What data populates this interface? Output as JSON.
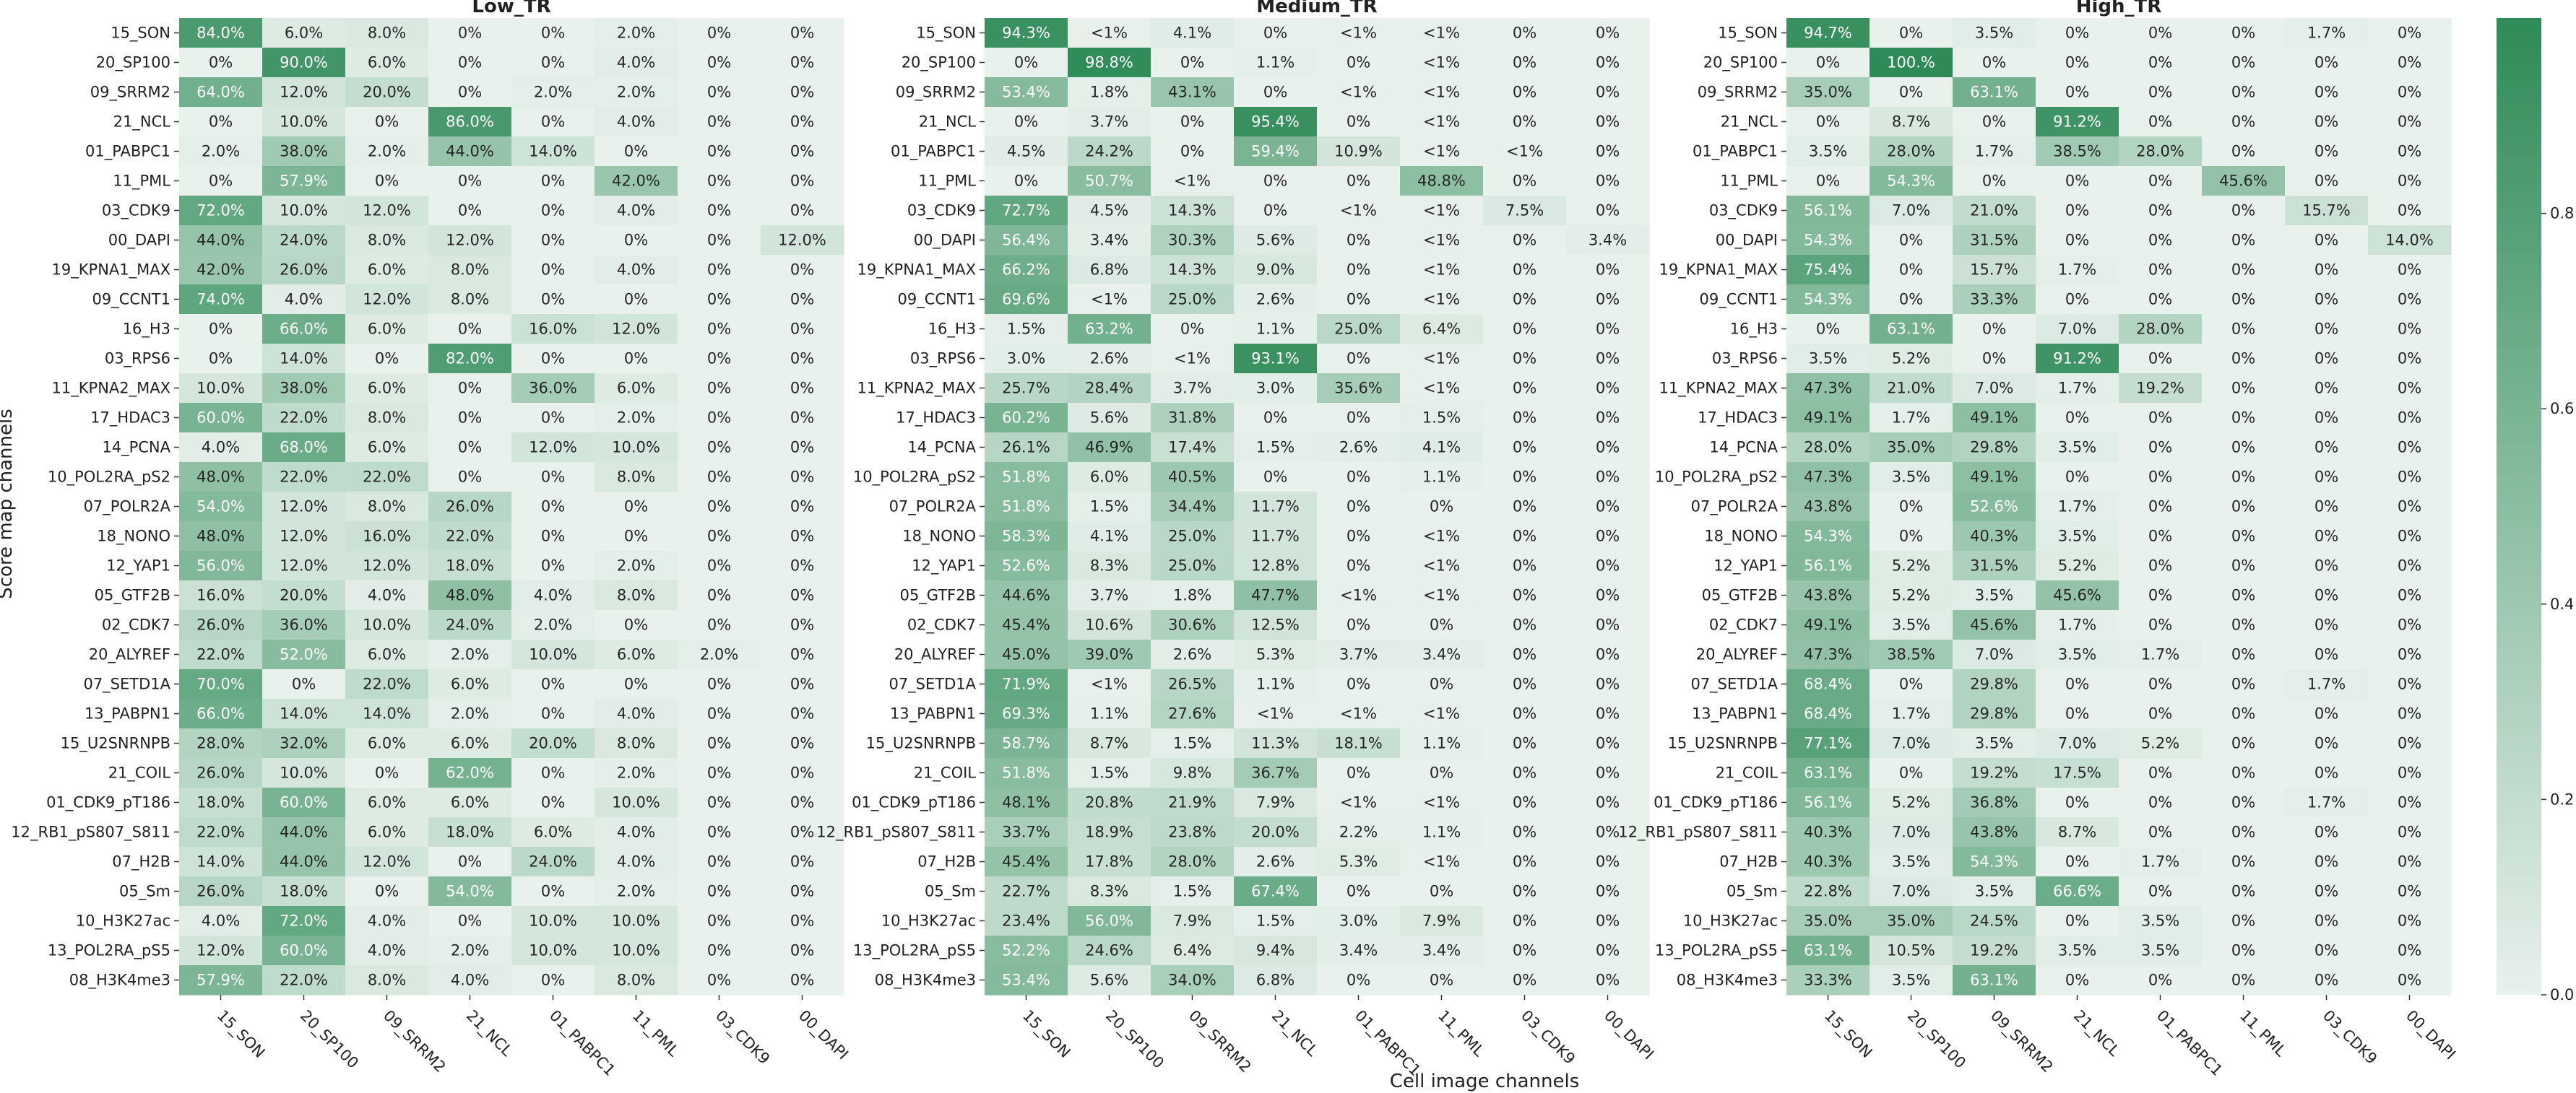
{
  "figure": {
    "xlabel": "Cell image channels",
    "ylabel": "Score map channels"
  },
  "chart_data": {
    "type": "heatmap",
    "rows": [
      "15_SON",
      "20_SP100",
      "09_SRRM2",
      "21_NCL",
      "01_PABPC1",
      "11_PML",
      "03_CDK9",
      "00_DAPI",
      "19_KPNA1_MAX",
      "09_CCNT1",
      "16_H3",
      "03_RPS6",
      "11_KPNA2_MAX",
      "17_HDAC3",
      "14_PCNA",
      "10_POL2RA_pS2",
      "07_POLR2A",
      "18_NONO",
      "12_YAP1",
      "05_GTF2B",
      "02_CDK7",
      "20_ALYREF",
      "07_SETD1A",
      "13_PABPN1",
      "15_U2SNRNPB",
      "21_COIL",
      "01_CDK9_pT186",
      "12_RB1_pS807_S811",
      "07_H2B",
      "05_Sm",
      "10_H3K27ac",
      "13_POL2RA_pS5",
      "08_H3K4me3"
    ],
    "columns": [
      "15_SON",
      "20_SP100",
      "09_SRRM2",
      "21_NCL",
      "01_PABPC1",
      "11_PML",
      "03_CDK9",
      "00_DAPI"
    ],
    "colorbar": {
      "min": 0.0,
      "max": 1.0,
      "ticks": [
        "0.0",
        "0.2",
        "0.4",
        "0.6",
        "0.8"
      ],
      "color_low": "#e8f1ec",
      "color_high": "#2e8b57"
    },
    "panels": [
      {
        "title": "Low_TR",
        "labels": [
          [
            "84.0%",
            "6.0%",
            "8.0%",
            "0%",
            "0%",
            "2.0%",
            "0%",
            "0%"
          ],
          [
            "0%",
            "90.0%",
            "6.0%",
            "0%",
            "0%",
            "4.0%",
            "0%",
            "0%"
          ],
          [
            "64.0%",
            "12.0%",
            "20.0%",
            "0%",
            "2.0%",
            "2.0%",
            "0%",
            "0%"
          ],
          [
            "0%",
            "10.0%",
            "0%",
            "86.0%",
            "0%",
            "4.0%",
            "0%",
            "0%"
          ],
          [
            "2.0%",
            "38.0%",
            "2.0%",
            "44.0%",
            "14.0%",
            "0%",
            "0%",
            "0%"
          ],
          [
            "0%",
            "57.9%",
            "0%",
            "0%",
            "0%",
            "42.0%",
            "0%",
            "0%"
          ],
          [
            "72.0%",
            "10.0%",
            "12.0%",
            "0%",
            "0%",
            "4.0%",
            "0%",
            "0%"
          ],
          [
            "44.0%",
            "24.0%",
            "8.0%",
            "12.0%",
            "0%",
            "0%",
            "0%",
            "12.0%"
          ],
          [
            "42.0%",
            "26.0%",
            "6.0%",
            "8.0%",
            "0%",
            "4.0%",
            "0%",
            "0%"
          ],
          [
            "74.0%",
            "4.0%",
            "12.0%",
            "8.0%",
            "0%",
            "0%",
            "0%",
            "0%"
          ],
          [
            "0%",
            "66.0%",
            "6.0%",
            "0%",
            "16.0%",
            "12.0%",
            "0%",
            "0%"
          ],
          [
            "0%",
            "14.0%",
            "0%",
            "82.0%",
            "0%",
            "0%",
            "0%",
            "0%"
          ],
          [
            "10.0%",
            "38.0%",
            "6.0%",
            "0%",
            "36.0%",
            "6.0%",
            "0%",
            "0%"
          ],
          [
            "60.0%",
            "22.0%",
            "8.0%",
            "0%",
            "0%",
            "2.0%",
            "0%",
            "0%"
          ],
          [
            "4.0%",
            "68.0%",
            "6.0%",
            "0%",
            "12.0%",
            "10.0%",
            "0%",
            "0%"
          ],
          [
            "48.0%",
            "22.0%",
            "22.0%",
            "0%",
            "0%",
            "8.0%",
            "0%",
            "0%"
          ],
          [
            "54.0%",
            "12.0%",
            "8.0%",
            "26.0%",
            "0%",
            "0%",
            "0%",
            "0%"
          ],
          [
            "48.0%",
            "12.0%",
            "16.0%",
            "22.0%",
            "0%",
            "0%",
            "0%",
            "0%"
          ],
          [
            "56.0%",
            "12.0%",
            "12.0%",
            "18.0%",
            "0%",
            "2.0%",
            "0%",
            "0%"
          ],
          [
            "16.0%",
            "20.0%",
            "4.0%",
            "48.0%",
            "4.0%",
            "8.0%",
            "0%",
            "0%"
          ],
          [
            "26.0%",
            "36.0%",
            "10.0%",
            "24.0%",
            "2.0%",
            "0%",
            "0%",
            "0%"
          ],
          [
            "22.0%",
            "52.0%",
            "6.0%",
            "2.0%",
            "10.0%",
            "6.0%",
            "2.0%",
            "0%"
          ],
          [
            "70.0%",
            "0%",
            "22.0%",
            "6.0%",
            "0%",
            "0%",
            "0%",
            "0%"
          ],
          [
            "66.0%",
            "14.0%",
            "14.0%",
            "2.0%",
            "0%",
            "4.0%",
            "0%",
            "0%"
          ],
          [
            "28.0%",
            "32.0%",
            "6.0%",
            "6.0%",
            "20.0%",
            "8.0%",
            "0%",
            "0%"
          ],
          [
            "26.0%",
            "10.0%",
            "0%",
            "62.0%",
            "0%",
            "2.0%",
            "0%",
            "0%"
          ],
          [
            "18.0%",
            "60.0%",
            "6.0%",
            "6.0%",
            "0%",
            "10.0%",
            "0%",
            "0%"
          ],
          [
            "22.0%",
            "44.0%",
            "6.0%",
            "18.0%",
            "6.0%",
            "4.0%",
            "0%",
            "0%"
          ],
          [
            "14.0%",
            "44.0%",
            "12.0%",
            "0%",
            "24.0%",
            "4.0%",
            "0%",
            "0%"
          ],
          [
            "26.0%",
            "18.0%",
            "0%",
            "54.0%",
            "0%",
            "2.0%",
            "0%",
            "0%"
          ],
          [
            "4.0%",
            "72.0%",
            "4.0%",
            "0%",
            "10.0%",
            "10.0%",
            "0%",
            "0%"
          ],
          [
            "12.0%",
            "60.0%",
            "4.0%",
            "2.0%",
            "10.0%",
            "10.0%",
            "0%",
            "0%"
          ],
          [
            "57.9%",
            "22.0%",
            "8.0%",
            "4.0%",
            "0%",
            "8.0%",
            "0%",
            "0%"
          ]
        ]
      },
      {
        "title": "Medium_TR",
        "labels": [
          [
            "94.3%",
            "<1%",
            "4.1%",
            "0%",
            "<1%",
            "<1%",
            "0%",
            "0%"
          ],
          [
            "0%",
            "98.8%",
            "0%",
            "1.1%",
            "0%",
            "<1%",
            "0%",
            "0%"
          ],
          [
            "53.4%",
            "1.8%",
            "43.1%",
            "0%",
            "<1%",
            "<1%",
            "0%",
            "0%"
          ],
          [
            "0%",
            "3.7%",
            "0%",
            "95.4%",
            "0%",
            "<1%",
            "0%",
            "0%"
          ],
          [
            "4.5%",
            "24.2%",
            "0%",
            "59.4%",
            "10.9%",
            "<1%",
            "<1%",
            "0%"
          ],
          [
            "0%",
            "50.7%",
            "<1%",
            "0%",
            "0%",
            "48.8%",
            "0%",
            "0%"
          ],
          [
            "72.7%",
            "4.5%",
            "14.3%",
            "0%",
            "<1%",
            "<1%",
            "7.5%",
            "0%"
          ],
          [
            "56.4%",
            "3.4%",
            "30.3%",
            "5.6%",
            "0%",
            "<1%",
            "0%",
            "3.4%"
          ],
          [
            "66.2%",
            "6.8%",
            "14.3%",
            "9.0%",
            "0%",
            "<1%",
            "0%",
            "0%"
          ],
          [
            "69.6%",
            "<1%",
            "25.0%",
            "2.6%",
            "0%",
            "<1%",
            "0%",
            "0%"
          ],
          [
            "1.5%",
            "63.2%",
            "0%",
            "1.1%",
            "25.0%",
            "6.4%",
            "0%",
            "0%"
          ],
          [
            "3.0%",
            "2.6%",
            "<1%",
            "93.1%",
            "0%",
            "<1%",
            "0%",
            "0%"
          ],
          [
            "25.7%",
            "28.4%",
            "3.7%",
            "3.0%",
            "35.6%",
            "<1%",
            "0%",
            "0%"
          ],
          [
            "60.2%",
            "5.6%",
            "31.8%",
            "0%",
            "0%",
            "1.5%",
            "0%",
            "0%"
          ],
          [
            "26.1%",
            "46.9%",
            "17.4%",
            "1.5%",
            "2.6%",
            "4.1%",
            "0%",
            "0%"
          ],
          [
            "51.8%",
            "6.0%",
            "40.5%",
            "0%",
            "0%",
            "1.1%",
            "0%",
            "0%"
          ],
          [
            "51.8%",
            "1.5%",
            "34.4%",
            "11.7%",
            "0%",
            "0%",
            "0%",
            "0%"
          ],
          [
            "58.3%",
            "4.1%",
            "25.0%",
            "11.7%",
            "0%",
            "<1%",
            "0%",
            "0%"
          ],
          [
            "52.6%",
            "8.3%",
            "25.0%",
            "12.8%",
            "0%",
            "<1%",
            "0%",
            "0%"
          ],
          [
            "44.6%",
            "3.7%",
            "1.8%",
            "47.7%",
            "<1%",
            "<1%",
            "0%",
            "0%"
          ],
          [
            "45.4%",
            "10.6%",
            "30.6%",
            "12.5%",
            "0%",
            "0%",
            "0%",
            "0%"
          ],
          [
            "45.0%",
            "39.0%",
            "2.6%",
            "5.3%",
            "3.7%",
            "3.4%",
            "0%",
            "0%"
          ],
          [
            "71.9%",
            "<1%",
            "26.5%",
            "1.1%",
            "0%",
            "0%",
            "0%",
            "0%"
          ],
          [
            "69.3%",
            "1.1%",
            "27.6%",
            "<1%",
            "<1%",
            "<1%",
            "0%",
            "0%"
          ],
          [
            "58.7%",
            "8.7%",
            "1.5%",
            "11.3%",
            "18.1%",
            "1.1%",
            "0%",
            "0%"
          ],
          [
            "51.8%",
            "1.5%",
            "9.8%",
            "36.7%",
            "0%",
            "0%",
            "0%",
            "0%"
          ],
          [
            "48.1%",
            "20.8%",
            "21.9%",
            "7.9%",
            "<1%",
            "<1%",
            "0%",
            "0%"
          ],
          [
            "33.7%",
            "18.9%",
            "23.8%",
            "20.0%",
            "2.2%",
            "1.1%",
            "0%",
            "0%"
          ],
          [
            "45.4%",
            "17.8%",
            "28.0%",
            "2.6%",
            "5.3%",
            "<1%",
            "0%",
            "0%"
          ],
          [
            "22.7%",
            "8.3%",
            "1.5%",
            "67.4%",
            "0%",
            "0%",
            "0%",
            "0%"
          ],
          [
            "23.4%",
            "56.0%",
            "7.9%",
            "1.5%",
            "3.0%",
            "7.9%",
            "0%",
            "0%"
          ],
          [
            "52.2%",
            "24.6%",
            "6.4%",
            "9.4%",
            "3.4%",
            "3.4%",
            "0%",
            "0%"
          ],
          [
            "53.4%",
            "5.6%",
            "34.0%",
            "6.8%",
            "0%",
            "0%",
            "0%",
            "0%"
          ]
        ]
      },
      {
        "title": "High_TR",
        "labels": [
          [
            "94.7%",
            "0%",
            "3.5%",
            "0%",
            "0%",
            "0%",
            "1.7%",
            "0%"
          ],
          [
            "0%",
            "100.%",
            "0%",
            "0%",
            "0%",
            "0%",
            "0%",
            "0%"
          ],
          [
            "35.0%",
            "0%",
            "63.1%",
            "0%",
            "0%",
            "0%",
            "0%",
            "0%"
          ],
          [
            "0%",
            "8.7%",
            "0%",
            "91.2%",
            "0%",
            "0%",
            "0%",
            "0%"
          ],
          [
            "3.5%",
            "28.0%",
            "1.7%",
            "38.5%",
            "28.0%",
            "0%",
            "0%",
            "0%"
          ],
          [
            "0%",
            "54.3%",
            "0%",
            "0%",
            "0%",
            "45.6%",
            "0%",
            "0%"
          ],
          [
            "56.1%",
            "7.0%",
            "21.0%",
            "0%",
            "0%",
            "0%",
            "15.7%",
            "0%"
          ],
          [
            "54.3%",
            "0%",
            "31.5%",
            "0%",
            "0%",
            "0%",
            "0%",
            "14.0%"
          ],
          [
            "75.4%",
            "0%",
            "15.7%",
            "1.7%",
            "0%",
            "0%",
            "0%",
            "0%"
          ],
          [
            "54.3%",
            "0%",
            "33.3%",
            "0%",
            "0%",
            "0%",
            "0%",
            "0%"
          ],
          [
            "0%",
            "63.1%",
            "0%",
            "7.0%",
            "28.0%",
            "0%",
            "0%",
            "0%"
          ],
          [
            "3.5%",
            "5.2%",
            "0%",
            "91.2%",
            "0%",
            "0%",
            "0%",
            "0%"
          ],
          [
            "47.3%",
            "21.0%",
            "7.0%",
            "1.7%",
            "19.2%",
            "0%",
            "0%",
            "0%"
          ],
          [
            "49.1%",
            "1.7%",
            "49.1%",
            "0%",
            "0%",
            "0%",
            "0%",
            "0%"
          ],
          [
            "28.0%",
            "35.0%",
            "29.8%",
            "3.5%",
            "0%",
            "0%",
            "0%",
            "0%"
          ],
          [
            "47.3%",
            "3.5%",
            "49.1%",
            "0%",
            "0%",
            "0%",
            "0%",
            "0%"
          ],
          [
            "43.8%",
            "0%",
            "52.6%",
            "1.7%",
            "0%",
            "0%",
            "0%",
            "0%"
          ],
          [
            "54.3%",
            "0%",
            "40.3%",
            "3.5%",
            "0%",
            "0%",
            "0%",
            "0%"
          ],
          [
            "56.1%",
            "5.2%",
            "31.5%",
            "5.2%",
            "0%",
            "0%",
            "0%",
            "0%"
          ],
          [
            "43.8%",
            "5.2%",
            "3.5%",
            "45.6%",
            "0%",
            "0%",
            "0%",
            "0%"
          ],
          [
            "49.1%",
            "3.5%",
            "45.6%",
            "1.7%",
            "0%",
            "0%",
            "0%",
            "0%"
          ],
          [
            "47.3%",
            "38.5%",
            "7.0%",
            "3.5%",
            "1.7%",
            "0%",
            "0%",
            "0%"
          ],
          [
            "68.4%",
            "0%",
            "29.8%",
            "0%",
            "0%",
            "0%",
            "1.7%",
            "0%"
          ],
          [
            "68.4%",
            "1.7%",
            "29.8%",
            "0%",
            "0%",
            "0%",
            "0%",
            "0%"
          ],
          [
            "77.1%",
            "7.0%",
            "3.5%",
            "7.0%",
            "5.2%",
            "0%",
            "0%",
            "0%"
          ],
          [
            "63.1%",
            "0%",
            "19.2%",
            "17.5%",
            "0%",
            "0%",
            "0%",
            "0%"
          ],
          [
            "56.1%",
            "5.2%",
            "36.8%",
            "0%",
            "0%",
            "0%",
            "1.7%",
            "0%"
          ],
          [
            "40.3%",
            "7.0%",
            "43.8%",
            "8.7%",
            "0%",
            "0%",
            "0%",
            "0%"
          ],
          [
            "40.3%",
            "3.5%",
            "54.3%",
            "0%",
            "1.7%",
            "0%",
            "0%",
            "0%"
          ],
          [
            "22.8%",
            "7.0%",
            "3.5%",
            "66.6%",
            "0%",
            "0%",
            "0%",
            "0%"
          ],
          [
            "35.0%",
            "35.0%",
            "24.5%",
            "0%",
            "3.5%",
            "0%",
            "0%",
            "0%"
          ],
          [
            "63.1%",
            "10.5%",
            "19.2%",
            "3.5%",
            "3.5%",
            "0%",
            "0%",
            "0%"
          ],
          [
            "33.3%",
            "3.5%",
            "63.1%",
            "0%",
            "0%",
            "0%",
            "0%",
            "0%"
          ]
        ]
      }
    ]
  }
}
